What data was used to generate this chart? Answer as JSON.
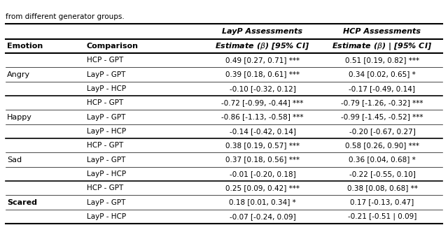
{
  "title_text": "from different generator groups.",
  "col_headers_row1": [
    "",
    "",
    "LayP Assessments",
    "HCP Assessments"
  ],
  "col_headers_row2": [
    "Emotion",
    "Comparison",
    "Estimate (β) [95% CI]",
    "Estimate (β) | [95% CI]"
  ],
  "emotions": [
    "Angry",
    "Happy",
    "Sad",
    "Scared"
  ],
  "emotion_rows": [
    3,
    3,
    3,
    3
  ],
  "rows": [
    [
      "Angry",
      "HCP - GPT",
      "0.49 [0.27, 0.71] ***",
      "0.51 [0.19, 0.82] ***"
    ],
    [
      "Angry",
      "LayP - GPT",
      "0.39 [0.18, 0.61] ***",
      "0.34 [0.02, 0.65] *"
    ],
    [
      "Angry",
      "LayP - HCP",
      "-0.10 [-0.32, 0.12]",
      "-0.17 [-0.49, 0.14]"
    ],
    [
      "Happy",
      "HCP - GPT",
      "-0.72 [-0.99, -0.44] ***",
      "-0.79 [-1.26, -0.32] ***"
    ],
    [
      "Happy",
      "LayP - GPT",
      "-0.86 [-1.13, -0.58] ***",
      "-0.99 [-1.45, -0.52] ***"
    ],
    [
      "Happy",
      "LayP - HCP",
      "-0.14 [-0.42, 0.14]",
      "-0.20 [-0.67, 0.27]"
    ],
    [
      "Sad",
      "HCP - GPT",
      "0.38 [0.19, 0.57] ***",
      "0.58 [0.26, 0.90] ***"
    ],
    [
      "Sad",
      "LayP - GPT",
      "0.37 [0.18, 0.56] ***",
      "0.36 [0.04, 0.68] *"
    ],
    [
      "Sad",
      "LayP - HCP",
      "-0.01 [-0.20, 0.18]",
      "-0.22 [-0.55, 0.10]"
    ],
    [
      "Scared",
      "HCP - GPT",
      "0.25 [0.09, 0.42] ***",
      "0.38 [0.08, 0.68] **"
    ],
    [
      "Scared",
      "LayP - GPT",
      "0.18 [0.01, 0.34] *",
      "0.17 [-0.13, 0.47]"
    ],
    [
      "Scared",
      "LayP - HCP",
      "-0.07 [-0.24, 0.09]",
      "-0.21 [-0.51 | 0.09]"
    ]
  ],
  "bg_color": "#ffffff",
  "header_bg": "#ffffff",
  "line_color": "#000000",
  "text_color": "#000000",
  "font_size": 7.5,
  "header_font_size": 8.0
}
